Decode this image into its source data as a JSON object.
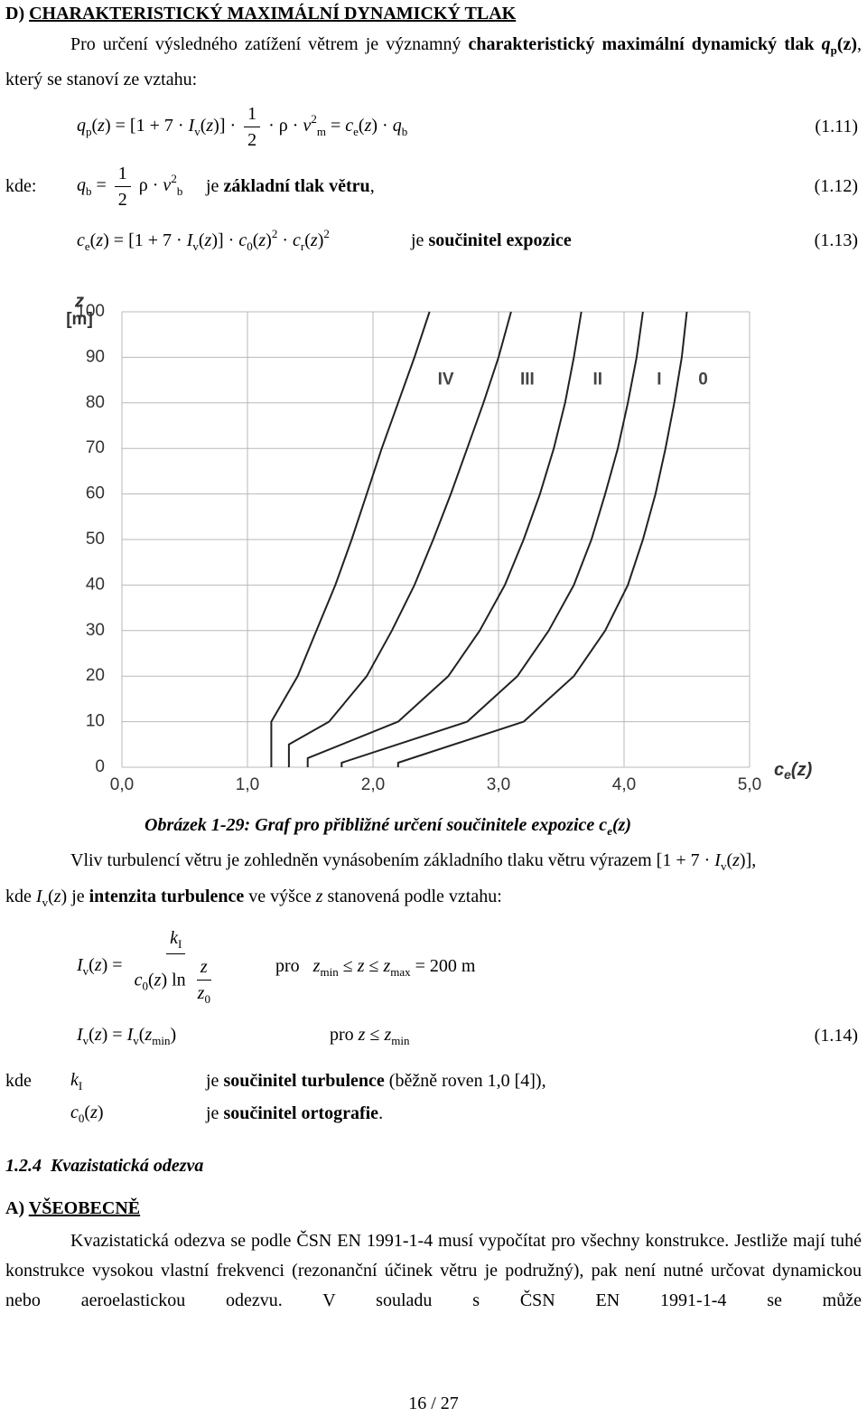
{
  "blocks": [
    {
      "runs": [
        {
          "t": "D) ",
          "s": "b"
        },
        {
          "t": "CHARAKTERISTICKÝ MAXIMÁLNÍ DYNAMICKÝ TLAK",
          "s": "b u"
        }
      ]
    },
    {
      "runs": [
        "Pro určení výsledného zatížení větrem je významný ",
        {
          "t": "charakteristický maximální dynamický tlak ",
          "s": "b"
        },
        {
          "t": "q",
          "s": "b i"
        },
        {
          "t": "p",
          "s": "b sub"
        },
        {
          "t": "(z)",
          "s": "b"
        },
        ", který se stanoví ze vztahu:"
      ]
    },
    {
      "runs": [
        {
          "t": "q",
          "s": "i"
        },
        {
          "t": "p",
          "s": "sub"
        },
        "(",
        {
          "t": "z",
          "s": "i"
        },
        ") = [1 + 7 · ",
        {
          "t": "I",
          "s": "i"
        },
        {
          "t": "v",
          "s": "sub"
        },
        "(",
        {
          "t": "z",
          "s": "i"
        },
        ")] · ",
        {
          "num": [
            "1"
          ],
          "den": [
            "2"
          ]
        },
        " · ρ · ",
        {
          "t": "v",
          "s": "i"
        },
        {
          "t": "2",
          "s": "sup"
        },
        {
          "t": "m",
          "s": "sub"
        },
        " = ",
        {
          "t": "c",
          "s": "i"
        },
        {
          "t": "e",
          "s": "sub"
        },
        "(",
        {
          "t": "z",
          "s": "i"
        },
        ") · ",
        {
          "t": "q",
          "s": "i"
        },
        {
          "t": "b",
          "s": "sub"
        }
      ],
      "number": "(1.11)"
    },
    {
      "label": "kde:",
      "runs": [
        {
          "t": "q",
          "s": "i"
        },
        {
          "t": "b",
          "s": "sub"
        },
        " = ",
        {
          "num": [
            "1"
          ],
          "den": [
            "2"
          ]
        },
        " ρ · ",
        {
          "t": "v",
          "s": "i"
        },
        {
          "t": "2",
          "s": "sup"
        },
        {
          "t": "b",
          "s": "sub"
        }
      ],
      "desc": [
        "je ",
        {
          "t": "základní tlak větru",
          "s": "b"
        },
        ","
      ],
      "number": "(1.12)"
    },
    {
      "runs": [
        {
          "t": "c",
          "s": "i"
        },
        {
          "t": "e",
          "s": "sub"
        },
        "(",
        {
          "t": "z",
          "s": "i"
        },
        ") = [1 + 7 · ",
        {
          "t": "I",
          "s": "i"
        },
        {
          "t": "v",
          "s": "sub"
        },
        "(",
        {
          "t": "z",
          "s": "i"
        },
        ")] · ",
        {
          "t": "c",
          "s": "i"
        },
        {
          "t": "0",
          "s": "sub"
        },
        "(",
        {
          "t": "z",
          "s": "i"
        },
        ")",
        {
          "t": "2",
          "s": "sup"
        },
        " · ",
        {
          "t": "c",
          "s": "i"
        },
        {
          "t": "r",
          "s": "sub"
        },
        "(",
        {
          "t": "z",
          "s": "i"
        },
        ")",
        {
          "t": "2",
          "s": "sup"
        }
      ],
      "desc": [
        "je ",
        {
          "t": "součinitel expozice",
          "s": "b"
        }
      ],
      "number": "(1.13)"
    },
    {
      "runs": [
        {
          "t": "Obrázek 1-29: Graf pro přibližné určení součinitele expozice c",
          "s": "b i"
        },
        {
          "t": "e",
          "s": "b i sub"
        },
        {
          "t": "(z)",
          "s": "b i"
        }
      ]
    },
    {
      "runs": [
        "Vliv turbulencí větru je zohledněn vynásobením základního tlaku větru výrazem [1 + 7 · ",
        {
          "t": "I",
          "s": "i"
        },
        {
          "t": "v",
          "s": "sub"
        },
        "(",
        {
          "t": "z",
          "s": "i"
        },
        ")],"
      ]
    },
    {
      "runs": [
        "kde ",
        {
          "t": "I",
          "s": "i"
        },
        {
          "t": "v",
          "s": "sub"
        },
        "(",
        {
          "t": "z",
          "s": "i"
        },
        ") je ",
        {
          "t": "intenzita turbulence",
          "s": "b"
        },
        " ve výšce ",
        {
          "t": "z",
          "s": "i"
        },
        " stanovená podle vztahu:"
      ]
    },
    {
      "runs": [
        {
          "t": "I",
          "s": "i"
        },
        {
          "t": "v",
          "s": "sub"
        },
        "(",
        {
          "t": "z",
          "s": "i"
        },
        ") = ",
        {
          "num": [
            {
              "t": "k",
              "s": "i"
            },
            {
              "t": "I",
              "s": "sub"
            }
          ],
          "den": [
            {
              "t": "c",
              "s": "i"
            },
            {
              "t": "0",
              "s": "sub"
            },
            "(",
            {
              "t": "z",
              "s": "i"
            },
            ") ln ",
            {
              "num": [
                {
                  "t": "z",
                  "s": "i"
                }
              ],
              "den": [
                {
                  "t": "z",
                  "s": "i"
                },
                {
                  "t": "0",
                  "s": "sub"
                }
              ]
            }
          ]
        }
      ],
      "desc": [
        "pro   ",
        {
          "t": "z",
          "s": "i"
        },
        {
          "t": "min",
          "s": "sub"
        },
        " ≤ ",
        {
          "t": "z",
          "s": "i"
        },
        " ≤ ",
        {
          "t": "z",
          "s": "i"
        },
        {
          "t": "max",
          "s": "sub"
        },
        " = 200 m"
      ]
    },
    {
      "runs": [
        {
          "t": "I",
          "s": "i"
        },
        {
          "t": "v",
          "s": "sub"
        },
        "(",
        {
          "t": "z",
          "s": "i"
        },
        ") = ",
        {
          "t": "I",
          "s": "i"
        },
        {
          "t": "v",
          "s": "sub"
        },
        "(",
        {
          "t": "z",
          "s": "i"
        },
        {
          "t": "min",
          "s": "sub"
        },
        ")"
      ],
      "desc": [
        "pro ",
        {
          "t": "z",
          "s": "i"
        },
        " ≤ ",
        {
          "t": "z",
          "s": "i"
        },
        {
          "t": "min",
          "s": "sub"
        }
      ],
      "number": "(1.14)"
    },
    {
      "label": "kde",
      "runs": [
        {
          "t": "k",
          "s": "i"
        },
        {
          "t": "I",
          "s": "sub"
        }
      ],
      "desc": [
        "je ",
        {
          "t": "součinitel turbulence",
          "s": "b"
        },
        " (běžně roven 1,0 [4]),"
      ]
    },
    {
      "runs": [
        {
          "t": "c",
          "s": "i"
        },
        {
          "t": "0",
          "s": "sub"
        },
        "(",
        {
          "t": "z",
          "s": "i"
        },
        ")"
      ],
      "desc": [
        "je ",
        {
          "t": "součinitel ortografie",
          "s": "b"
        },
        "."
      ]
    },
    {
      "runs": [
        {
          "t": "1.2.4  Kvazistatická odezva",
          "s": "b i"
        }
      ]
    },
    {
      "runs": [
        {
          "t": "A) ",
          "s": "b"
        },
        {
          "t": "VŠEOBECNĚ",
          "s": "b u"
        }
      ]
    },
    {
      "runs": [
        "Kvazistatická odezva se podle ČSN EN 1991-1-4 musí vypočítat pro všechny konstrukce. Jestliže mají tuhé konstrukce vysokou vlastní frekvenci (rezonanční účinek větru je podružný), pak není nutné určovat dynamickou nebo aeroelastickou odezvu. V souladu s ČSN EN 1991-1-4 se může"
      ]
    },
    {
      "runs": [
        "16 / 27"
      ]
    }
  ],
  "chart_data": {
    "type": "line",
    "ylabel": "z",
    "yunit": "[m]",
    "xlabel": {
      "base": "c",
      "sub": "e",
      "tail": "(z)"
    },
    "xlim": [
      0,
      5
    ],
    "ylim": [
      0,
      100
    ],
    "xticks": [
      {
        "value": 0,
        "label": "0,0"
      },
      {
        "value": 1,
        "label": "1,0"
      },
      {
        "value": 2,
        "label": "2,0"
      },
      {
        "value": 3,
        "label": "3,0"
      },
      {
        "value": 4,
        "label": "4,0"
      },
      {
        "value": 5,
        "label": "5,0"
      }
    ],
    "yticks": [
      0,
      10,
      20,
      30,
      40,
      50,
      60,
      70,
      80,
      90,
      100
    ],
    "grid": true,
    "series": [
      {
        "name": "0",
        "color": "#222222",
        "x": [
          2.2,
          2.2,
          3.2,
          3.6,
          3.85,
          4.03,
          4.15,
          4.25,
          4.33,
          4.4,
          4.46,
          4.5
        ],
        "values": [
          0,
          1,
          10,
          20,
          30,
          40,
          50,
          60,
          70,
          80,
          90,
          100
        ]
      },
      {
        "name": "I",
        "color": "#222222",
        "x": [
          1.75,
          1.75,
          2.75,
          3.15,
          3.4,
          3.6,
          3.74,
          3.85,
          3.95,
          4.03,
          4.1,
          4.15
        ],
        "values": [
          0,
          1,
          10,
          20,
          30,
          40,
          50,
          60,
          70,
          80,
          90,
          100
        ]
      },
      {
        "name": "II",
        "color": "#222222",
        "x": [
          1.48,
          1.48,
          2.2,
          2.6,
          2.85,
          3.05,
          3.2,
          3.33,
          3.44,
          3.53,
          3.6,
          3.66
        ],
        "values": [
          0,
          2,
          10,
          20,
          30,
          40,
          50,
          60,
          70,
          80,
          90,
          100
        ]
      },
      {
        "name": "III",
        "color": "#222222",
        "x": [
          1.33,
          1.33,
          1.65,
          1.95,
          2.15,
          2.33,
          2.48,
          2.62,
          2.75,
          2.88,
          3.0,
          3.1
        ],
        "values": [
          0,
          5,
          10,
          20,
          30,
          40,
          50,
          60,
          70,
          80,
          90,
          100
        ]
      },
      {
        "name": "IV",
        "color": "#222222",
        "x": [
          1.19,
          1.19,
          1.4,
          1.55,
          1.7,
          1.83,
          1.95,
          2.07,
          2.2,
          2.33,
          2.45
        ],
        "values": [
          0,
          10,
          20,
          30,
          40,
          50,
          60,
          70,
          80,
          90,
          100
        ]
      }
    ]
  }
}
